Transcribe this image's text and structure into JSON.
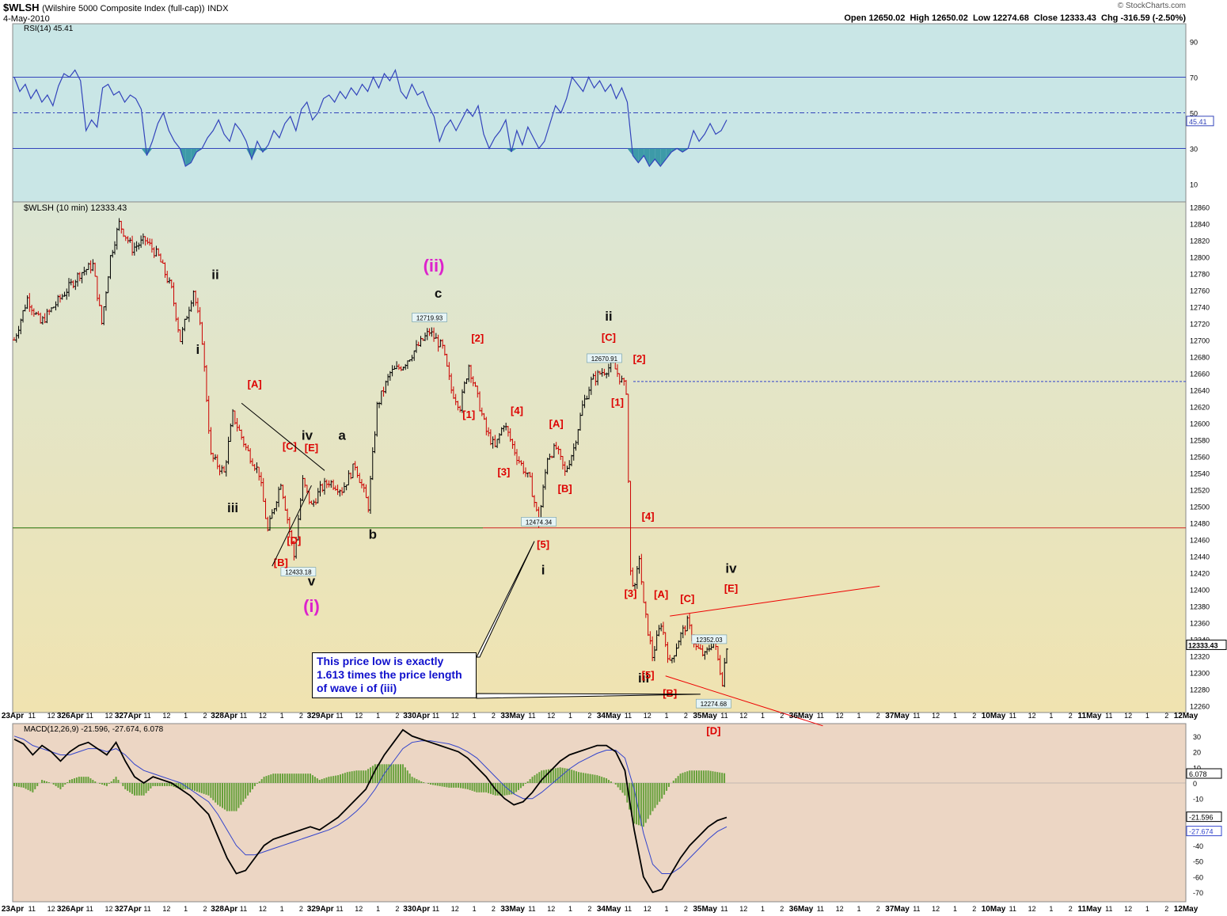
{
  "header": {
    "symbol": "$WLSH",
    "description": "(Wilshire 5000 Composite Index (full-cap))",
    "exchange": "INDX",
    "date": "4-May-2010",
    "ohlc": "Open 12650.02  High 12650.02  Low 12274.68  Close 12333.43  Chg -316.59 (-2.50%)",
    "watermark": "© StockCharts.com"
  },
  "colors": {
    "rsi_bg": "#c9e6e6",
    "price_bg_top": "#dce6d4",
    "price_bg_bottom": "#f0e3b0",
    "macd_bg": "#ecd6c4",
    "up_bar": "#000000",
    "down_bar": "#cc0000",
    "rsi_line": "#3344bb",
    "wave_red": "#dd0000",
    "wave_magenta": "#dd22cc",
    "note_text": "#1010cc"
  },
  "chart_data": [
    {
      "type": "line",
      "title": "RSI(14) 45.41",
      "ylim": [
        0,
        100
      ],
      "yticks": [
        "90",
        "70",
        "50",
        "30",
        "10"
      ],
      "reference_lines": [
        70,
        50,
        30
      ],
      "last_value_label": "45.41",
      "series": [
        {
          "values": [
            70,
            62,
            66,
            58,
            63,
            56,
            60,
            54,
            65,
            72,
            70,
            74,
            68,
            40,
            46,
            42,
            64,
            66,
            60,
            62,
            56,
            60,
            58,
            52,
            26,
            34,
            44,
            50,
            40,
            34,
            30,
            20,
            22,
            28,
            30,
            36,
            40,
            46,
            38,
            34,
            44,
            40,
            34,
            24,
            34,
            28,
            32,
            40,
            36,
            44,
            48,
            40,
            52,
            56,
            46,
            50,
            58,
            60,
            56,
            62,
            58,
            64,
            60,
            66,
            62,
            70,
            64,
            72,
            68,
            74,
            62,
            58,
            66,
            60,
            62,
            54,
            48,
            34,
            42,
            46,
            40,
            46,
            52,
            48,
            54,
            38,
            30,
            36,
            40,
            46,
            28,
            40,
            32,
            42,
            36,
            30,
            34,
            44,
            54,
            50,
            58,
            70,
            66,
            62,
            70,
            64,
            68,
            62,
            66,
            58,
            64,
            56,
            26,
            22,
            26,
            20,
            24,
            20,
            24,
            28,
            30,
            28,
            30,
            40,
            34,
            38,
            44,
            38,
            40,
            46
          ]
        }
      ]
    },
    {
      "type": "line",
      "title": "$WLSH (10 min) 12333.43",
      "ylim": [
        12252,
        12866
      ],
      "yticks": [
        "12860",
        "12840",
        "12820",
        "12800",
        "12780",
        "12760",
        "12740",
        "12720",
        "12700",
        "12680",
        "12660",
        "12640",
        "12620",
        "12600",
        "12580",
        "12560",
        "12540",
        "12520",
        "12500",
        "12480",
        "12460",
        "12440",
        "12420",
        "12400",
        "12380",
        "12360",
        "12340",
        "12320",
        "12300",
        "12280",
        "12260"
      ],
      "last_value_label": "12333.43",
      "horizontal_lines": [
        12650,
        12474
      ],
      "x_labels": [
        "23Apr",
        "11",
        "12",
        "326Apr",
        "11",
        "12",
        "327Apr",
        "11",
        "12",
        "1",
        "2",
        "328Apr",
        "11",
        "12",
        "1",
        "2",
        "329Apr",
        "11",
        "12",
        "1",
        "2",
        "330Apr",
        "11",
        "12",
        "1",
        "2",
        "33May",
        "11",
        "12",
        "1",
        "2",
        "34May",
        "11",
        "12",
        "1",
        "2",
        "35May",
        "11",
        "12",
        "1",
        "2",
        "36May",
        "11",
        "12",
        "1",
        "2",
        "37May",
        "11",
        "12",
        "1",
        "2",
        "10May",
        "11",
        "12",
        "1",
        "2",
        "11May",
        "11",
        "12",
        "1",
        "2",
        "12May"
      ],
      "price_path": [
        [
          0,
          12700
        ],
        [
          3,
          12750
        ],
        [
          6,
          12720
        ],
        [
          9,
          12740
        ],
        [
          12,
          12760
        ],
        [
          15,
          12780
        ],
        [
          18,
          12790
        ],
        [
          20,
          12720
        ],
        [
          22,
          12800
        ],
        [
          24,
          12840
        ],
        [
          27,
          12810
        ],
        [
          30,
          12820
        ],
        [
          33,
          12800
        ],
        [
          36,
          12760
        ],
        [
          38,
          12700
        ],
        [
          40,
          12740
        ],
        [
          41,
          12760
        ],
        [
          43,
          12700
        ],
        [
          45,
          12560
        ],
        [
          48,
          12540
        ],
        [
          50,
          12610
        ],
        [
          53,
          12570
        ],
        [
          56,
          12540
        ],
        [
          58,
          12470
        ],
        [
          61,
          12530
        ],
        [
          64,
          12440
        ],
        [
          66,
          12530
        ],
        [
          68,
          12500
        ],
        [
          70,
          12520
        ],
        [
          72,
          12530
        ],
        [
          75,
          12520
        ],
        [
          78,
          12550
        ],
        [
          81,
          12500
        ],
        [
          83,
          12620
        ],
        [
          86,
          12660
        ],
        [
          89,
          12670
        ],
        [
          92,
          12690
        ],
        [
          95,
          12710
        ],
        [
          98,
          12690
        ],
        [
          100,
          12640
        ],
        [
          102,
          12620
        ],
        [
          104,
          12670
        ],
        [
          106,
          12630
        ],
        [
          108,
          12590
        ],
        [
          110,
          12570
        ],
        [
          112,
          12600
        ],
        [
          115,
          12560
        ],
        [
          118,
          12530
        ],
        [
          120,
          12480
        ],
        [
          122,
          12560
        ],
        [
          124,
          12570
        ],
        [
          126,
          12540
        ],
        [
          128,
          12570
        ],
        [
          130,
          12620
        ],
        [
          132,
          12650
        ],
        [
          134,
          12660
        ],
        [
          137,
          12670
        ],
        [
          139,
          12650
        ],
        [
          140,
          12640
        ],
        [
          141,
          12420
        ],
        [
          142,
          12400
        ],
        [
          143,
          12440
        ],
        [
          144,
          12380
        ],
        [
          146,
          12320
        ],
        [
          148,
          12360
        ],
        [
          150,
          12310
        ],
        [
          152,
          12340
        ],
        [
          154,
          12360
        ],
        [
          156,
          12330
        ],
        [
          158,
          12320
        ],
        [
          160,
          12340
        ],
        [
          162,
          12290
        ],
        [
          163,
          12333
        ]
      ],
      "swing_labels": [
        {
          "text": "12719.93",
          "x": 95,
          "y": 12719.93
        },
        {
          "text": "12670.91",
          "x": 135,
          "y": 12670.91
        },
        {
          "text": "12474.34",
          "x": 120,
          "y": 12474.34
        },
        {
          "text": "12433.18",
          "x": 65,
          "y": 12433.18
        },
        {
          "text": "12352.03",
          "x": 159,
          "y": 12352.03
        },
        {
          "text": "12274.68",
          "x": 160,
          "y": 12274.68
        }
      ],
      "wave_labels": [
        {
          "text": "ii",
          "x": 46,
          "y": 12773,
          "color": "black"
        },
        {
          "text": "i",
          "x": 42,
          "y": 12683,
          "color": "black"
        },
        {
          "text": "iii",
          "x": 50,
          "y": 12493,
          "color": "black"
        },
        {
          "text": "iv",
          "x": 67,
          "y": 12580,
          "color": "black"
        },
        {
          "text": "a",
          "x": 75,
          "y": 12580,
          "color": "black"
        },
        {
          "text": "b",
          "x": 82,
          "y": 12461,
          "color": "black"
        },
        {
          "text": "v",
          "x": 68,
          "y": 12405,
          "color": "black"
        },
        {
          "text": "c",
          "x": 97,
          "y": 12751,
          "color": "black"
        },
        {
          "text": "ii",
          "x": 136,
          "y": 12723,
          "color": "black"
        },
        {
          "text": "i",
          "x": 121,
          "y": 12418,
          "color": "black"
        },
        {
          "text": "iii",
          "x": 144,
          "y": 12288,
          "color": "black"
        },
        {
          "text": "iv",
          "x": 164,
          "y": 12420,
          "color": "black"
        },
        {
          "text": "(ii)",
          "x": 96,
          "y": 12782,
          "color": "magenta"
        },
        {
          "text": "(i)",
          "x": 68,
          "y": 12373,
          "color": "magenta"
        },
        {
          "text": "[A]",
          "x": 55,
          "y": 12643,
          "color": "red"
        },
        {
          "text": "[C]",
          "x": 63,
          "y": 12568,
          "color": "red"
        },
        {
          "text": "[E]",
          "x": 68,
          "y": 12566,
          "color": "red"
        },
        {
          "text": "[D]",
          "x": 64,
          "y": 12455,
          "color": "red"
        },
        {
          "text": "[B]",
          "x": 61,
          "y": 12428,
          "color": "red"
        },
        {
          "text": "[2]",
          "x": 106,
          "y": 12698,
          "color": "red"
        },
        {
          "text": "[1]",
          "x": 104,
          "y": 12606,
          "color": "red"
        },
        {
          "text": "[4]",
          "x": 115,
          "y": 12611,
          "color": "red"
        },
        {
          "text": "[3]",
          "x": 112,
          "y": 12537,
          "color": "red"
        },
        {
          "text": "[A]",
          "x": 124,
          "y": 12595,
          "color": "red"
        },
        {
          "text": "[B]",
          "x": 126,
          "y": 12517,
          "color": "red"
        },
        {
          "text": "[5]",
          "x": 121,
          "y": 12450,
          "color": "red"
        },
        {
          "text": "[C]",
          "x": 136,
          "y": 12699,
          "color": "red"
        },
        {
          "text": "[2]",
          "x": 143,
          "y": 12673,
          "color": "red"
        },
        {
          "text": "[1]",
          "x": 138,
          "y": 12621,
          "color": "red"
        },
        {
          "text": "[4]",
          "x": 145,
          "y": 12484,
          "color": "red"
        },
        {
          "text": "[3]",
          "x": 141,
          "y": 12391,
          "color": "red"
        },
        {
          "text": "[A]",
          "x": 148,
          "y": 12390,
          "color": "red"
        },
        {
          "text": "[C]",
          "x": 154,
          "y": 12385,
          "color": "red"
        },
        {
          "text": "[E]",
          "x": 164,
          "y": 12397,
          "color": "red"
        },
        {
          "text": "[5]",
          "x": 145,
          "y": 12293,
          "color": "red"
        },
        {
          "text": "[B]",
          "x": 150,
          "y": 12271,
          "color": "red"
        },
        {
          "text": "[D]",
          "x": 160,
          "y": 12226,
          "color": "red"
        }
      ],
      "annotation": "This price low is exactly 1.613 times the price length of wave i of (iii)"
    },
    {
      "type": "line",
      "title": "MACD(12,26,9) -21.596, -27.674, 6.078",
      "ylim": [
        -76,
        38
      ],
      "yticks": [
        "30",
        "20",
        "10",
        "0",
        "-10",
        "-20",
        "-30",
        "-40",
        "-50",
        "-60",
        "-70"
      ],
      "last_value_labels": [
        "6.078",
        "-21.596",
        "-27.674"
      ],
      "series": [
        {
          "name": "MACD",
          "values": [
            28,
            25,
            18,
            24,
            20,
            14,
            20,
            24,
            26,
            22,
            18,
            26,
            14,
            4,
            0,
            4,
            2,
            0,
            -4,
            -8,
            -14,
            -20,
            -34,
            -48,
            -58,
            -56,
            -48,
            -40,
            -36,
            -34,
            -32,
            -30,
            -28,
            -30,
            -26,
            -22,
            -16,
            -10,
            -4,
            8,
            18,
            26,
            34,
            30,
            28,
            26,
            24,
            22,
            20,
            16,
            10,
            4,
            -4,
            -10,
            -14,
            -12,
            -6,
            2,
            8,
            14,
            18,
            20,
            22,
            24,
            24,
            20,
            8,
            -30,
            -60,
            -70,
            -68,
            -58,
            -48,
            -40,
            -34,
            -28,
            -24,
            -22
          ]
        },
        {
          "name": "Signal",
          "values": [
            30,
            28,
            24,
            22,
            20,
            18,
            18,
            20,
            22,
            22,
            20,
            22,
            18,
            12,
            8,
            6,
            4,
            2,
            0,
            -4,
            -8,
            -12,
            -20,
            -30,
            -40,
            -46,
            -46,
            -44,
            -42,
            -40,
            -38,
            -36,
            -34,
            -32,
            -30,
            -27,
            -23,
            -18,
            -12,
            -4,
            6,
            14,
            22,
            26,
            27,
            27,
            26,
            25,
            23,
            20,
            16,
            10,
            4,
            -2,
            -7,
            -10,
            -10,
            -6,
            -1,
            4,
            9,
            13,
            16,
            19,
            21,
            21,
            16,
            -4,
            -32,
            -52,
            -58,
            -58,
            -54,
            -48,
            -42,
            -36,
            -31,
            -28
          ]
        },
        {
          "name": "Histogram",
          "values": [
            -2,
            -3,
            -6,
            2,
            0,
            -4,
            2,
            4,
            4,
            0,
            -2,
            4,
            -4,
            -8,
            -8,
            -2,
            -2,
            -2,
            -4,
            -4,
            -6,
            -8,
            -14,
            -18,
            -18,
            -10,
            -2,
            4,
            6,
            6,
            6,
            6,
            6,
            2,
            4,
            5,
            7,
            8,
            8,
            12,
            12,
            12,
            12,
            4,
            1,
            -1,
            -2,
            -3,
            -3,
            -4,
            -6,
            -6,
            -8,
            -8,
            -7,
            -2,
            4,
            8,
            9,
            10,
            9,
            7,
            6,
            5,
            3,
            -1,
            -8,
            -26,
            -28,
            -18,
            -10,
            0,
            6,
            8,
            8,
            8,
            7,
            6
          ]
        }
      ]
    }
  ]
}
